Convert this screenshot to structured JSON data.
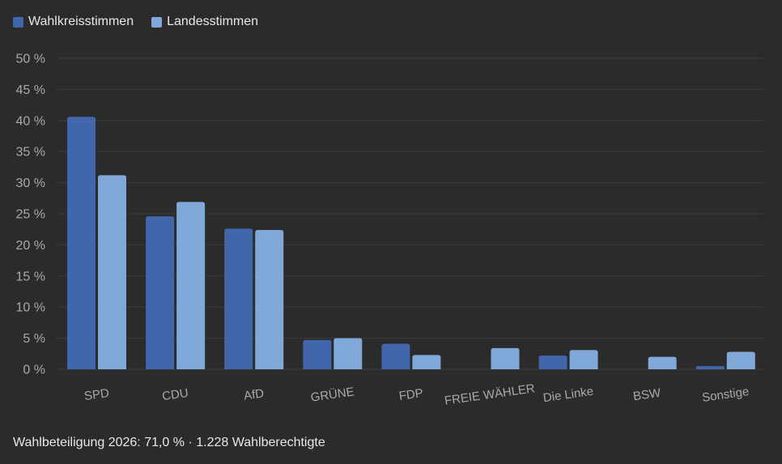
{
  "legend": {
    "series_0": "Wahlkreisstimmen",
    "series_1": "Landesstimmen"
  },
  "footer": {
    "text": "Wahlbeteiligung 2026: 71,0 % · 1.228 Wahlberechtigte"
  },
  "colors": {
    "background": "#2b2b2b",
    "grid": "#3d3d3d",
    "series_0": "#4166ab",
    "series_1": "#80a8d8"
  },
  "chart_data": {
    "type": "bar",
    "categories": [
      "SPD",
      "CDU",
      "AfD",
      "GRÜNE",
      "FDP",
      "FREIE WÄHLER",
      "Die Linke",
      "BSW",
      "Sonstige"
    ],
    "series": [
      {
        "name": "Wahlkreisstimmen",
        "values": [
          40.6,
          24.6,
          22.6,
          4.7,
          4.1,
          0.0,
          2.2,
          0.0,
          0.5
        ]
      },
      {
        "name": "Landesstimmen",
        "values": [
          31.2,
          26.9,
          22.4,
          5.0,
          2.3,
          3.4,
          3.1,
          2.0,
          2.8
        ]
      }
    ],
    "y_ticks": [
      "0 %",
      "5 %",
      "10 %",
      "15 %",
      "20 %",
      "25 %",
      "30 %",
      "35 %",
      "40 %",
      "45 %",
      "50 %"
    ],
    "ylim": [
      0,
      50
    ],
    "y_step": 5,
    "grid": true,
    "legend_position": "top-left"
  }
}
